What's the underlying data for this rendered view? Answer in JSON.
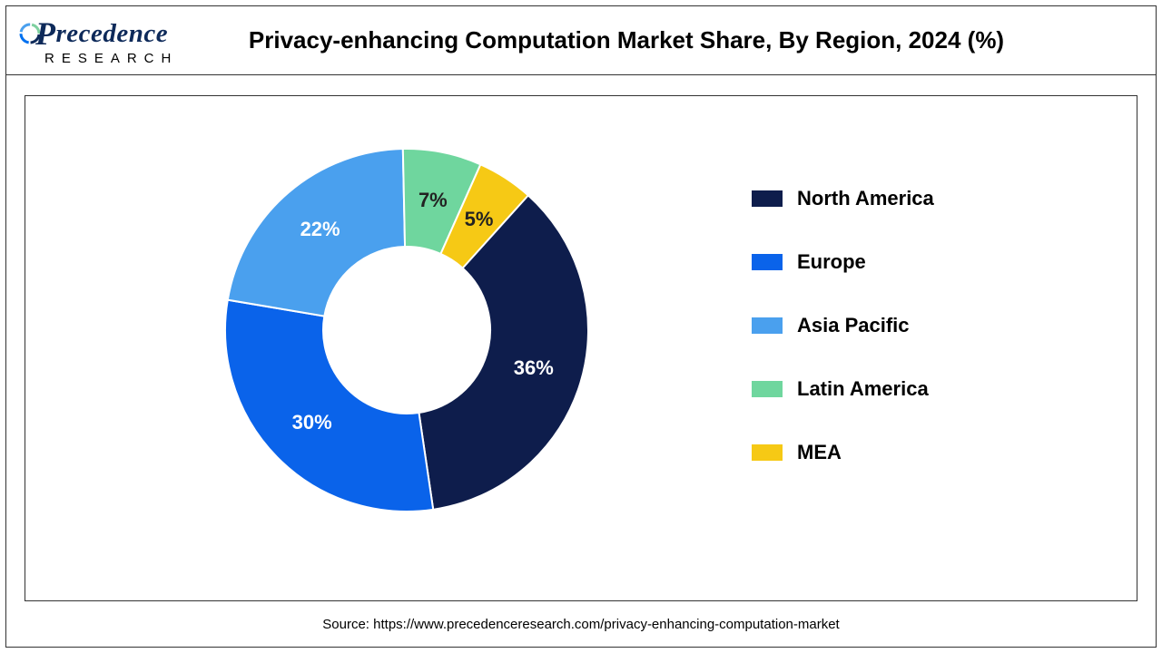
{
  "logo": {
    "top_text": "recedence",
    "bottom_text": "RESEARCH",
    "color_dark": "#0e2a5a",
    "ring_colors": [
      "#0e2a5a",
      "#0070f0",
      "#4aa0ee",
      "#7ed0a0"
    ]
  },
  "title": "Privacy-enhancing Computation Market Share, By Region, 2024 (%)",
  "chart": {
    "type": "donut",
    "inner_radius_ratio": 0.46,
    "background_color": "#ffffff",
    "slices": [
      {
        "label": "North America",
        "value": 36,
        "color": "#0e1d4c",
        "text_color": "#ffffff",
        "display": "36%"
      },
      {
        "label": "Europe",
        "value": 30,
        "color": "#0a63ea",
        "text_color": "#ffffff",
        "display": "30%"
      },
      {
        "label": "Asia Pacific",
        "value": 22,
        "color": "#4aa0ee",
        "text_color": "#ffffff",
        "display": "22%"
      },
      {
        "label": "Latin America",
        "value": 7,
        "color": "#6fd69e",
        "text_color": "#222222",
        "display": "7%"
      },
      {
        "label": "MEA",
        "value": 5,
        "color": "#f6c915",
        "text_color": "#222222",
        "display": "5%"
      }
    ],
    "start_angle_deg": 42,
    "label_fontsize": 22,
    "label_fontweight": "bold"
  },
  "legend": {
    "fontsize": 22,
    "fontweight": "bold",
    "color": "#000000",
    "swatch_w": 34,
    "swatch_h": 18
  },
  "source": "Source: https://www.precedenceresearch.com/privacy-enhancing-computation-market",
  "frame_color": "#333333"
}
